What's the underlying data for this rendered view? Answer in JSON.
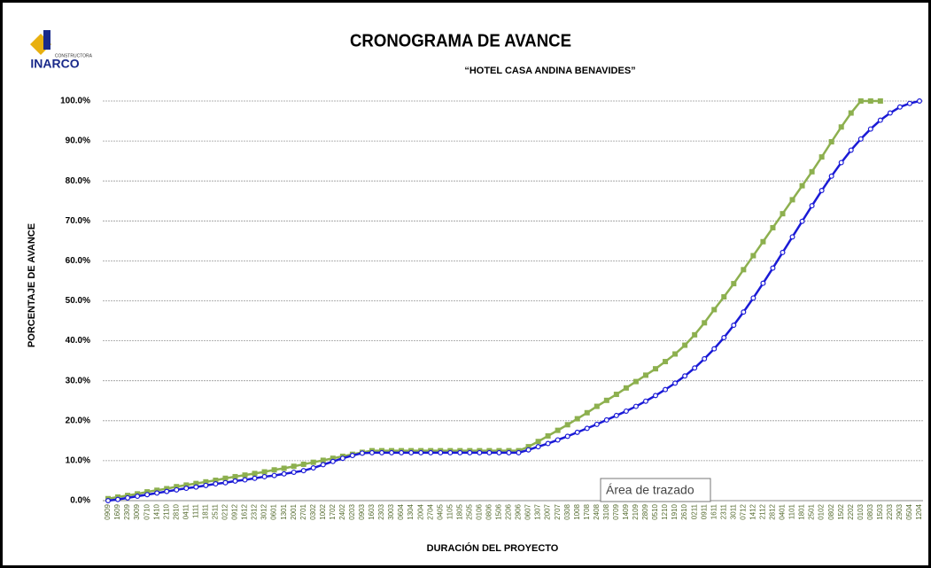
{
  "logo": {
    "name": "INARCO",
    "tagline": "CONSTRUCTORA"
  },
  "tooltip": "Área de trazado",
  "chart_data": {
    "type": "line",
    "title": "CRONOGRAMA DE AVANCE",
    "subtitle": "“HOTEL CASA ANDINA BENAVIDES”",
    "y_label": "PORCENTAJE DE AVANCE",
    "x_label": "DURACIÓN DEL PROYECTO",
    "categories": [
      "0909",
      "1609",
      "2309",
      "3009",
      "0710",
      "1410",
      "2110",
      "2810",
      "0411",
      "1111",
      "1811",
      "2511",
      "0212",
      "0912",
      "1612",
      "2312",
      "3012",
      "0601",
      "1301",
      "2001",
      "2701",
      "0302",
      "1002",
      "1702",
      "2402",
      "0203",
      "0903",
      "1603",
      "2303",
      "3003",
      "0604",
      "1304",
      "2004",
      "2704",
      "0405",
      "1105",
      "1805",
      "2505",
      "0106",
      "0806",
      "1506",
      "2206",
      "2906",
      "0607",
      "1307",
      "2007",
      "2707",
      "0308",
      "1008",
      "1708",
      "2408",
      "3108",
      "0709",
      "1409",
      "2109",
      "2809",
      "0510",
      "1210",
      "1910",
      "2610",
      "0211",
      "0911",
      "1611",
      "2311",
      "3011",
      "0712",
      "1412",
      "2112",
      "2812",
      "0401",
      "1101",
      "1801",
      "2501",
      "0102",
      "0802",
      "1502",
      "2202",
      "0103",
      "0803",
      "1503",
      "2203",
      "2903",
      "0504",
      "1204"
    ],
    "series": [
      {
        "color": "#8db04f",
        "marker": "square",
        "values": [
          0.5,
          0.9,
          1.3,
          1.7,
          2.2,
          2.6,
          3.0,
          3.5,
          3.9,
          4.3,
          4.7,
          5.1,
          5.6,
          6.0,
          6.4,
          6.8,
          7.2,
          7.7,
          8.1,
          8.6,
          9.1,
          9.6,
          10.1,
          10.6,
          11.1,
          11.6,
          12.1,
          12.5,
          12.5,
          12.5,
          12.5,
          12.5,
          12.5,
          12.5,
          12.5,
          12.5,
          12.5,
          12.5,
          12.5,
          12.5,
          12.5,
          12.5,
          12.5,
          13.5,
          14.8,
          16.2,
          17.6,
          19.0,
          20.5,
          22.0,
          23.6,
          25.1,
          26.6,
          28.2,
          29.8,
          31.4,
          33.0,
          34.8,
          36.7,
          38.9,
          41.5,
          44.5,
          47.8,
          51.0,
          54.3,
          57.8,
          61.3,
          64.8,
          68.3,
          71.8,
          75.3,
          78.8,
          82.3,
          86.0,
          89.8,
          93.5,
          97.0,
          100,
          100,
          100,
          null,
          null,
          null,
          null
        ]
      },
      {
        "color": "#1a1ad6",
        "marker": "circle",
        "values": [
          0,
          0.3,
          0.7,
          1.1,
          1.5,
          1.9,
          2.3,
          2.7,
          3.1,
          3.4,
          3.8,
          4.2,
          4.5,
          4.9,
          5.2,
          5.6,
          6.0,
          6.3,
          6.7,
          7.1,
          7.5,
          8.2,
          9.0,
          9.8,
          10.6,
          11.3,
          11.9,
          12.0,
          12.0,
          12.0,
          12.0,
          12.0,
          12.0,
          12.0,
          12.0,
          12.0,
          12.0,
          12.0,
          12.0,
          12.0,
          12.0,
          12.0,
          12.0,
          12.7,
          13.5,
          14.3,
          15.2,
          16.1,
          17.1,
          18.1,
          19.1,
          20.2,
          21.3,
          22.4,
          23.6,
          24.9,
          26.3,
          27.8,
          29.4,
          31.2,
          33.2,
          35.5,
          38.0,
          40.8,
          43.9,
          47.2,
          50.7,
          54.4,
          58.2,
          62.1,
          66.0,
          69.9,
          73.8,
          77.6,
          81.2,
          84.6,
          87.7,
          90.5,
          93.0,
          95.2,
          97.0,
          98.5,
          99.4,
          100
        ]
      }
    ],
    "ylim": [
      0,
      100
    ],
    "yticks": [
      {
        "value": 0,
        "label": "0.0%"
      },
      {
        "value": 10,
        "label": "10.0%"
      },
      {
        "value": 20,
        "label": "20.0%"
      },
      {
        "value": 30,
        "label": "30.0%"
      },
      {
        "value": 40,
        "label": "40.0%"
      },
      {
        "value": 50,
        "label": "50.0%"
      },
      {
        "value": 60,
        "label": "60.0%"
      },
      {
        "value": 70,
        "label": "70.0%"
      },
      {
        "value": 80,
        "label": "80.0%"
      },
      {
        "value": 90,
        "label": "90.0%"
      },
      {
        "value": 100,
        "label": "100.0%"
      }
    ],
    "grid": true
  }
}
